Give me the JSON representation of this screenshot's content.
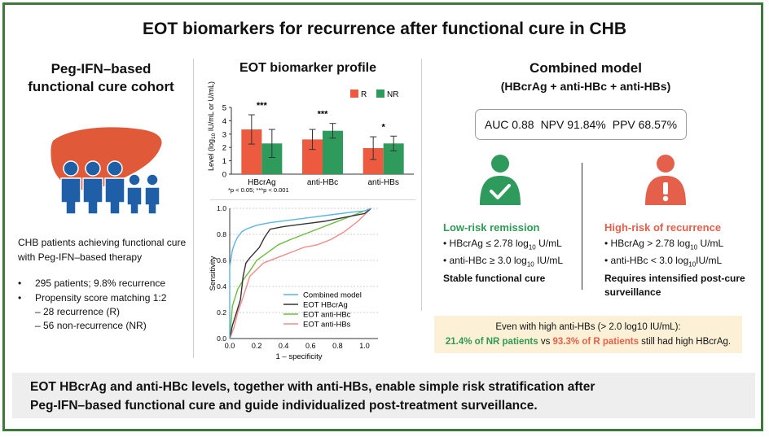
{
  "title": "EOT biomarkers for recurrence after functional cure in CHB",
  "left": {
    "heading_line1": "Peg-IFN–based",
    "heading_line2": "functional cure cohort",
    "desc_line1": "CHB patients achieving functional cure",
    "desc_line2": "with Peg-IFN–based therapy",
    "bullet1": "295 patients; 9.8% recurrence",
    "bullet2": "Propensity score matching 1:2",
    "sub1": "– 28 recurrence (R)",
    "sub2": "– 56 non-recurrence (NR)",
    "bullet_symbol": "•"
  },
  "middle": {
    "heading": "EOT biomarker profile"
  },
  "chart_data": [
    {
      "type": "bar",
      "categories": [
        "HBcrAg",
        "anti-HBc",
        "anti-HBs"
      ],
      "series": [
        {
          "name": "R",
          "values": [
            3.35,
            2.6,
            1.95
          ],
          "err": [
            1.1,
            0.75,
            0.85
          ],
          "color": "#ec5a3f"
        },
        {
          "name": "NR",
          "values": [
            2.3,
            3.25,
            2.3
          ],
          "err": [
            1.05,
            0.55,
            0.55
          ],
          "color": "#2e9a5b"
        }
      ],
      "ylabel_parts": [
        "Level (log",
        "10",
        " IU/mL or U/mL)"
      ],
      "ylim": [
        0,
        5
      ],
      "yticks": [
        "0",
        "1",
        "2",
        "3",
        "4",
        "5"
      ],
      "significance": [
        "***",
        "***",
        "*"
      ],
      "footnote": "*p < 0.05; ***p < 0.001",
      "legend": "top-right"
    },
    {
      "type": "line",
      "xlabel": "1 – specificity",
      "ylabel": "Sensitivity",
      "xlim": [
        0,
        1.1
      ],
      "ylim": [
        0,
        1.0
      ],
      "xticks": [
        "0.0",
        "0.2",
        "0.4",
        "0.6",
        "0.8",
        "1.0"
      ],
      "yticks": [
        "0.0",
        "0.2",
        "0.4",
        "0.6",
        "0.8",
        "1.0"
      ],
      "grid": true,
      "legend": "bottom-right",
      "series": [
        {
          "name": "Combined model",
          "color": "#5ab4e6",
          "points": [
            [
              0,
              0
            ],
            [
              0,
              0.55
            ],
            [
              0.02,
              0.68
            ],
            [
              0.04,
              0.74
            ],
            [
              0.06,
              0.78
            ],
            [
              0.09,
              0.82
            ],
            [
              0.12,
              0.84
            ],
            [
              0.2,
              0.87
            ],
            [
              0.3,
              0.89
            ],
            [
              0.45,
              0.91
            ],
            [
              0.6,
              0.93
            ],
            [
              0.75,
              0.95
            ],
            [
              0.9,
              0.97
            ],
            [
              1.0,
              0.98
            ],
            [
              1.05,
              1.0
            ]
          ]
        },
        {
          "name": "EOT HBcrAg",
          "color": "#333333",
          "points": [
            [
              0,
              0
            ],
            [
              0.02,
              0.1
            ],
            [
              0.05,
              0.2
            ],
            [
              0.08,
              0.3
            ],
            [
              0.1,
              0.48
            ],
            [
              0.12,
              0.58
            ],
            [
              0.15,
              0.62
            ],
            [
              0.22,
              0.7
            ],
            [
              0.26,
              0.78
            ],
            [
              0.3,
              0.84
            ],
            [
              0.4,
              0.86
            ],
            [
              0.55,
              0.88
            ],
            [
              0.7,
              0.9
            ],
            [
              0.85,
              0.93
            ],
            [
              1.0,
              0.96
            ],
            [
              1.05,
              1.0
            ]
          ]
        },
        {
          "name": "EOT anti-HBc",
          "color": "#6cbf3c",
          "points": [
            [
              0,
              0
            ],
            [
              0.02,
              0.25
            ],
            [
              0.06,
              0.38
            ],
            [
              0.1,
              0.45
            ],
            [
              0.15,
              0.52
            ],
            [
              0.2,
              0.6
            ],
            [
              0.28,
              0.66
            ],
            [
              0.36,
              0.72
            ],
            [
              0.45,
              0.76
            ],
            [
              0.55,
              0.8
            ],
            [
              0.65,
              0.84
            ],
            [
              0.75,
              0.88
            ],
            [
              0.85,
              0.92
            ],
            [
              0.95,
              0.96
            ],
            [
              1.05,
              1.0
            ]
          ]
        },
        {
          "name": "EOT anti-HBs",
          "color": "#f58a8a",
          "points": [
            [
              0,
              0
            ],
            [
              0.03,
              0.08
            ],
            [
              0.06,
              0.2
            ],
            [
              0.1,
              0.32
            ],
            [
              0.15,
              0.48
            ],
            [
              0.25,
              0.58
            ],
            [
              0.35,
              0.62
            ],
            [
              0.45,
              0.66
            ],
            [
              0.55,
              0.7
            ],
            [
              0.65,
              0.72
            ],
            [
              0.75,
              0.76
            ],
            [
              0.85,
              0.82
            ],
            [
              0.95,
              0.9
            ],
            [
              1.05,
              1.0
            ]
          ]
        }
      ]
    }
  ],
  "right": {
    "heading_line1": "Combined model",
    "heading_line2": "(HBcrAg + anti-HBc + anti-HBs)",
    "auc": "AUC  0.88",
    "npv": "NPV 91.84%",
    "ppv": "PPV 68.57%",
    "low": {
      "title": "Low-risk remission",
      "b1_pre": "HBcrAg ≤ 2.78 log",
      "b1_sub": "10",
      "b1_post": " U/mL",
      "b2_pre": "anti-HBc ≥ 3.0 log",
      "b2_sub": "10",
      "b2_post": " IU/mL",
      "conclusion": "Stable functional cure",
      "color": "#2f9a54"
    },
    "high": {
      "title": "High-risk of recurrence",
      "b1_pre": "HBcrAg > 2.78 log",
      "b1_sub": "10",
      "b1_post": " U/mL",
      "b2_pre": "anti-HBc < 3.0 log",
      "b2_sub": "10",
      "b2_post": "IU/mL",
      "conclusion_line1": "Requires intensified post-cure",
      "conclusion_line2": "surveillance",
      "color": "#e5604a"
    },
    "callout": {
      "line1": "Even with high anti-HBs (> 2.0 log10 IU/mL):",
      "part_green": "21.4% of NR patients",
      "part_mid": " vs ",
      "part_red": "93.3% of R patients",
      "part_end": " still had high HBcrAg."
    }
  },
  "bottom": {
    "line1": "EOT HBcrAg and anti-HBc levels, together with anti-HBs, enable simple risk stratification after",
    "line2": "Peg-IFN–based functional cure and guide individualized post-treatment surveillance."
  },
  "colors": {
    "frame": "#3b7a3c",
    "liver": "#e05a3a",
    "people": "#1f5fa8",
    "r": "#ec5a3f",
    "nr": "#2e9a5b"
  }
}
